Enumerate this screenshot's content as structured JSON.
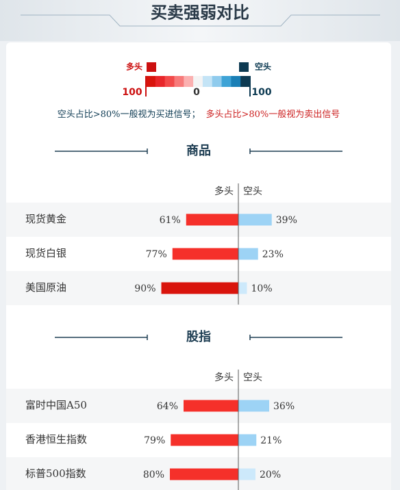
{
  "header": {
    "title": "买卖强弱对比"
  },
  "legend": {
    "long": "多头",
    "short": "空头",
    "long_color": "#cc1010",
    "short_color": "#0d3a52",
    "ticks": [
      100,
      0,
      100
    ],
    "colors": [
      "#d9140c",
      "#e8262a",
      "#f24a4a",
      "#f77a7a",
      "#fbb0b0",
      "#f4f4f4",
      "#c4e4f6",
      "#8fcbed",
      "#3ea3d6",
      "#1a7fb6",
      "#0d3a52"
    ]
  },
  "note": [
    {
      "text": "空头占比>80%一般视为买进信号；",
      "color": "#0d3a52"
    },
    {
      "text": "多头占比>80%一般视为卖出信号",
      "color": "#cc2020"
    }
  ],
  "chart_data": [
    {
      "type": "diverging-bar",
      "title": "商品",
      "categories": [
        "现货黄金",
        "现货白银",
        "美国原油"
      ],
      "xlim": [
        0,
        100
      ],
      "series": [
        {
          "name": "多头",
          "values": [
            61,
            77,
            90
          ],
          "value_labels": [
            "61%",
            "77%",
            "90%"
          ],
          "colors": [
            "#f5302a",
            "#f5302a",
            "#d9140c"
          ]
        },
        {
          "name": "空头",
          "values": [
            39,
            23,
            10
          ],
          "value_labels": [
            "39%",
            "23%",
            "10%"
          ],
          "colors": [
            "#9dd3f5",
            "#9dd3f5",
            "#cde9fb"
          ]
        }
      ]
    },
    {
      "type": "diverging-bar",
      "title": "股指",
      "categories": [
        "富时中国A50",
        "香港恒生指数",
        "标普500指数"
      ],
      "xlim": [
        0,
        100
      ],
      "series": [
        {
          "name": "多头",
          "values": [
            64,
            79,
            80
          ],
          "value_labels": [
            "64%",
            "79%",
            "80%"
          ],
          "colors": [
            "#f5302a",
            "#f5302a",
            "#f5302a"
          ]
        },
        {
          "name": "空头",
          "values": [
            36,
            21,
            20
          ],
          "value_labels": [
            "36%",
            "21%",
            "20%"
          ],
          "colors": [
            "#9dd3f5",
            "#9dd3f5",
            "#cde9fb"
          ]
        }
      ]
    }
  ]
}
